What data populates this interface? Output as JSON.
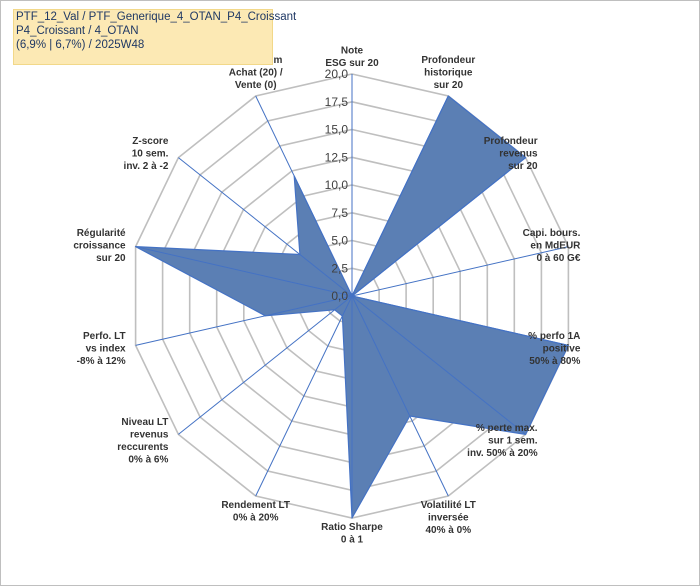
{
  "title_box": {
    "line1": "PTF_12_Val / PTF_Generique_4_OTAN_P4_Croissant",
    "line2": "P4_Croissant / 4_OTAN",
    "line3": "(6,9% | 6,7%) / 2025W48"
  },
  "colors": {
    "fill": "#5b7fb4",
    "stroke": "#4472c4",
    "grid": "#bfbfbf",
    "title_bg": "#fce9b4",
    "title_text": "#1f3864"
  },
  "chart_data": {
    "type": "radar",
    "rmax": 20,
    "ticks": [
      "0,0",
      "2,5",
      "5,0",
      "7,5",
      "10,0",
      "12,5",
      "15,0",
      "17,5",
      "20,0"
    ],
    "axes": [
      {
        "label": [
          "Note",
          "ESG sur 20"
        ],
        "value": 0
      },
      {
        "label": [
          "Profondeur",
          "historique",
          "sur 20"
        ],
        "value": 20
      },
      {
        "label": [
          "Profondeur",
          "revenus",
          "sur 20"
        ],
        "value": 20
      },
      {
        "label": [
          "Capi. bours.",
          "en MdEUR",
          "0 à 60 G€"
        ],
        "value": 0
      },
      {
        "label": [
          "% perfo 1A",
          "positive",
          "50% à 80%"
        ],
        "value": 20
      },
      {
        "label": [
          "% perte max.",
          "sur 1 sem.",
          "inv. 50% à 20%"
        ],
        "value": 20
      },
      {
        "label": [
          "Volatilité LT",
          "inversée",
          "40% à 0%"
        ],
        "value": 12
      },
      {
        "label": [
          "Ratio Sharpe",
          "0 à 1"
        ],
        "value": 20
      },
      {
        "label": [
          "Rendement LT",
          "0% à 20%"
        ],
        "value": 2
      },
      {
        "label": [
          "Niveau LT",
          "revenus",
          "reccurents",
          "0% à 6%"
        ],
        "value": 2
      },
      {
        "label": [
          "Perfo. LT",
          "vs index",
          "-8% à 12%"
        ],
        "value": 8
      },
      {
        "label": [
          "Régularité",
          "croissance",
          "sur 20"
        ],
        "value": 20
      },
      {
        "label": [
          "Z-score",
          "10 sem.",
          "inv. 2 à -2"
        ],
        "value": 6
      },
      {
        "label": [
          "Momentum",
          "Achat (20) /",
          "Vente (0)"
        ],
        "value": 12
      }
    ]
  }
}
